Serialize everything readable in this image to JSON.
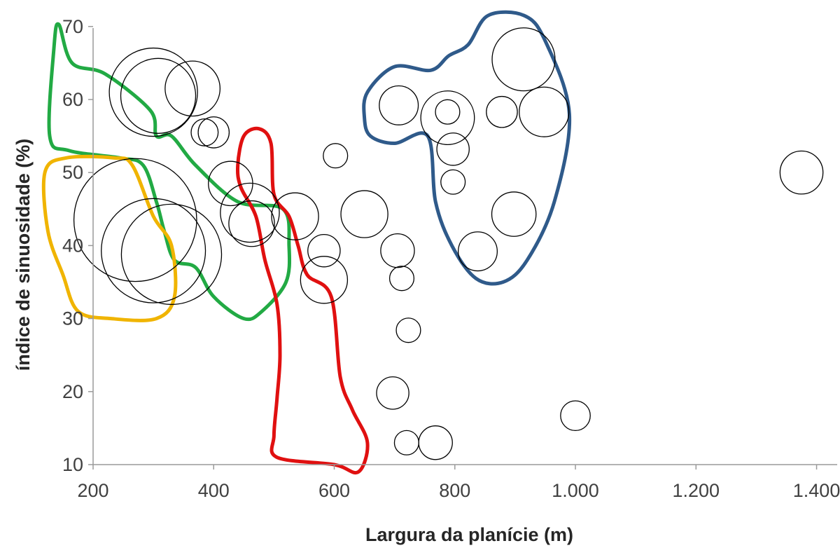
{
  "chart_data": {
    "type": "scatter",
    "title": "",
    "xlabel": "Largura da planície (m)",
    "ylabel": "índice de sinuosidade (%)",
    "xlim": [
      200,
      1400
    ],
    "ylim": [
      10,
      70
    ],
    "x_ticks": [
      {
        "value": 200,
        "label": "200"
      },
      {
        "value": 400,
        "label": "400"
      },
      {
        "value": 600,
        "label": "600"
      },
      {
        "value": 800,
        "label": "800"
      },
      {
        "value": 1000,
        "label": "1.000"
      },
      {
        "value": 1200,
        "label": "1.200"
      },
      {
        "value": 1400,
        "label": "1.400"
      }
    ],
    "y_ticks": [
      {
        "value": 10,
        "label": "10"
      },
      {
        "value": 20,
        "label": "20"
      },
      {
        "value": 30,
        "label": "30"
      },
      {
        "value": 40,
        "label": "40"
      },
      {
        "value": 50,
        "label": "50"
      },
      {
        "value": 60,
        "label": "60"
      },
      {
        "value": 70,
        "label": "70"
      }
    ],
    "grid": false,
    "legend": "none",
    "marker": "open-circle",
    "bubble_size_unit": "relative",
    "points": [
      {
        "x": 300,
        "y": 61,
        "size": 60
      },
      {
        "x": 308,
        "y": 60.5,
        "size": 50
      },
      {
        "x": 365,
        "y": 61.5,
        "size": 35
      },
      {
        "x": 385,
        "y": 55.5,
        "size": 14
      },
      {
        "x": 400,
        "y": 55.5,
        "size": 17
      },
      {
        "x": 428,
        "y": 48.5,
        "size": 27
      },
      {
        "x": 460,
        "y": 44.5,
        "size": 38
      },
      {
        "x": 463,
        "y": 43,
        "size": 28
      },
      {
        "x": 535,
        "y": 44,
        "size": 29
      },
      {
        "x": 583,
        "y": 39.3,
        "size": 18
      },
      {
        "x": 583,
        "y": 35.3,
        "size": 29
      },
      {
        "x": 270,
        "y": 43.5,
        "size": 86
      },
      {
        "x": 300,
        "y": 39.3,
        "size": 72
      },
      {
        "x": 330,
        "y": 38.8,
        "size": 69
      },
      {
        "x": 602,
        "y": 52.3,
        "size": 12
      },
      {
        "x": 650,
        "y": 44.3,
        "size": 29
      },
      {
        "x": 705,
        "y": 39.3,
        "size": 19
      },
      {
        "x": 712,
        "y": 35.5,
        "size": 12
      },
      {
        "x": 723,
        "y": 28.4,
        "size": 12
      },
      {
        "x": 697,
        "y": 19.8,
        "size": 18
      },
      {
        "x": 720,
        "y": 13,
        "size": 12
      },
      {
        "x": 768,
        "y": 13,
        "size": 19
      },
      {
        "x": 707,
        "y": 59.2,
        "size": 23
      },
      {
        "x": 788,
        "y": 57.5,
        "size": 34
      },
      {
        "x": 788,
        "y": 58.3,
        "size": 12
      },
      {
        "x": 797,
        "y": 53.2,
        "size": 18
      },
      {
        "x": 797,
        "y": 48.7,
        "size": 12
      },
      {
        "x": 878,
        "y": 58.3,
        "size": 17
      },
      {
        "x": 914,
        "y": 65.5,
        "size": 41
      },
      {
        "x": 948,
        "y": 58.3,
        "size": 31
      },
      {
        "x": 898,
        "y": 44.3,
        "size": 27
      },
      {
        "x": 838,
        "y": 39.2,
        "size": 23
      },
      {
        "x": 1000,
        "y": 16.7,
        "size": 16
      },
      {
        "x": 1375,
        "y": 50,
        "size": 26
      }
    ],
    "groups": [
      {
        "color": "#22aa44",
        "outline": [
          [
            143,
            70.3
          ],
          [
            165,
            65
          ],
          [
            220,
            63.5
          ],
          [
            295,
            58.5
          ],
          [
            305,
            55
          ],
          [
            330,
            55
          ],
          [
            370,
            51
          ],
          [
            440,
            46
          ],
          [
            515,
            45
          ],
          [
            525,
            40
          ],
          [
            520,
            35
          ],
          [
            480,
            31
          ],
          [
            450,
            30
          ],
          [
            400,
            33
          ],
          [
            370,
            37
          ],
          [
            335,
            38
          ],
          [
            318,
            42
          ],
          [
            305,
            46
          ],
          [
            283,
            51
          ],
          [
            245,
            52
          ],
          [
            160,
            53
          ],
          [
            128,
            55
          ],
          [
            135,
            67
          ],
          [
            143,
            70.3
          ]
        ],
        "outline_mode": "traced"
      },
      {
        "color": "#f0b400",
        "outline": [
          [
            120,
            50
          ],
          [
            155,
            52
          ],
          [
            235,
            52
          ],
          [
            265,
            51
          ],
          [
            300,
            44
          ],
          [
            330,
            40
          ],
          [
            335,
            33
          ],
          [
            305,
            30
          ],
          [
            230,
            30
          ],
          [
            175,
            31
          ],
          [
            150,
            36
          ],
          [
            125,
            42
          ],
          [
            120,
            50
          ]
        ],
        "outline_mode": "traced"
      },
      {
        "color": "#e01010",
        "outline": [
          [
            450,
            55
          ],
          [
            475,
            56
          ],
          [
            495,
            54
          ],
          [
            500,
            47
          ],
          [
            525,
            44
          ],
          [
            540,
            40
          ],
          [
            555,
            36
          ],
          [
            595,
            33
          ],
          [
            610,
            22
          ],
          [
            630,
            17.5
          ],
          [
            655,
            13
          ],
          [
            640,
            9
          ],
          [
            600,
            10
          ],
          [
            505,
            11
          ],
          [
            500,
            14
          ],
          [
            505,
            19
          ],
          [
            510,
            25
          ],
          [
            505,
            32
          ],
          [
            485,
            38
          ],
          [
            470,
            44
          ],
          [
            445,
            48
          ],
          [
            440,
            51
          ],
          [
            450,
            55
          ]
        ],
        "outline_mode": "traced"
      }
    ]
  }
}
